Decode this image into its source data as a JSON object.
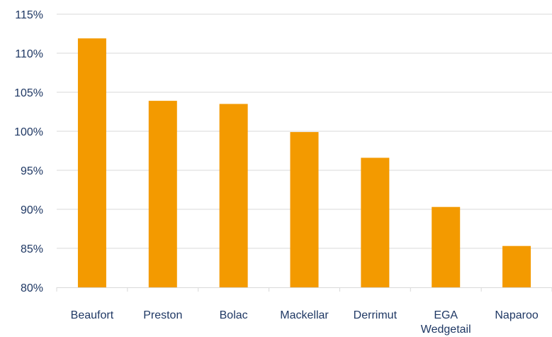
{
  "chart_data": {
    "type": "bar",
    "categories": [
      "Beaufort",
      "Preston",
      "Bolac",
      "Mackellar",
      "Derrimut",
      "EGA Wedgetail",
      "Naparoo"
    ],
    "category_lines": [
      [
        "Beaufort"
      ],
      [
        "Preston"
      ],
      [
        "Bolac"
      ],
      [
        "Mackellar"
      ],
      [
        "Derrimut"
      ],
      [
        "EGA",
        "Wedgetail"
      ],
      [
        "Naparoo"
      ]
    ],
    "values": [
      111.9,
      103.9,
      103.5,
      99.9,
      96.6,
      90.3,
      85.3
    ],
    "ylim": [
      80,
      115
    ],
    "yticks": [
      80,
      85,
      90,
      95,
      100,
      105,
      110,
      115
    ],
    "ytick_labels": [
      "80%",
      "85%",
      "90%",
      "95%",
      "100%",
      "105%",
      "110%",
      "115%"
    ],
    "grid": true,
    "legend": "none",
    "bar_color": "#f39a00",
    "grid_color": "#d9d9d9",
    "label_color": "#1f3864"
  }
}
